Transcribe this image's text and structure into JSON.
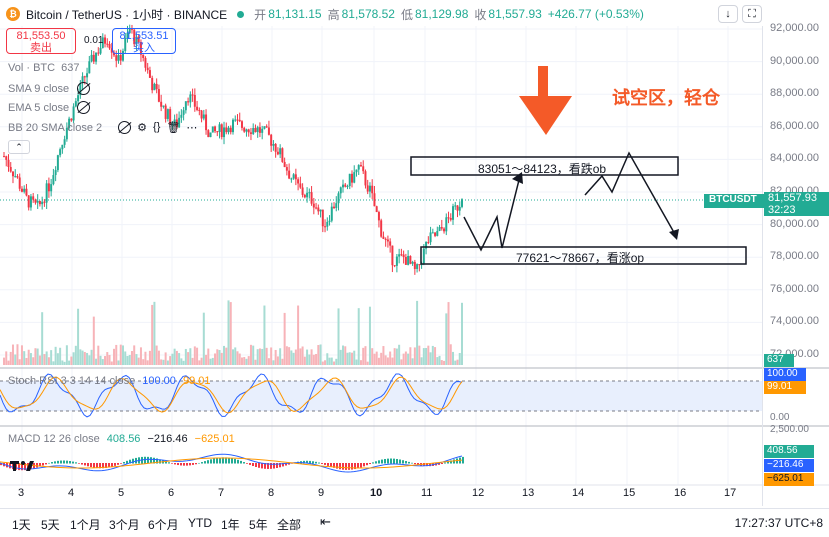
{
  "header": {
    "title": "Bitcoin / TetherUS · 1小时 · BINANCE",
    "open_label": "开",
    "open_value": "81,131.15",
    "high_label": "高",
    "high_value": "81,578.52",
    "low_label": "低",
    "low_value": "81,129.98",
    "close_label": "收",
    "close_value": "81,557.93",
    "change": "+426.77 (+0.53%)"
  },
  "trade": {
    "sell_price": "81,553.50",
    "sell_label": "卖出",
    "spread": "0.01",
    "buy_price": "81,553.51",
    "buy_label": "买入"
  },
  "indicators": {
    "vol_label": "Vol · BTC",
    "vol_value": "637",
    "sma_label": "SMA 9 close",
    "ema_label": "EMA 5 close",
    "bb_label": "BB 20 SMA close 2"
  },
  "price_axis": [
    "92,000.00",
    "90,000.00",
    "88,000.00",
    "86,000.00",
    "84,000.00",
    "82,000.00",
    "80,000.00",
    "78,000.00",
    "76,000.00",
    "74,000.00",
    "72,000.00"
  ],
  "price_tag": {
    "symbol": "BTCUSDT",
    "price": "81,557.93",
    "countdown": "32:23",
    "volume": "637"
  },
  "stoch": {
    "label": "Stoch RSI 3 3 14 14 close",
    "k": "100.00",
    "d": "99.01",
    "axis": [
      "100.00",
      "99.01",
      "0.00"
    ]
  },
  "macd": {
    "label": "MACD 12 26 close",
    "hist": "408.56",
    "macd": "−216.46",
    "signal": "−625.01",
    "axis": [
      "2,500.00",
      "408.56",
      "−216.46",
      "−625.01"
    ]
  },
  "x_axis": [
    "3",
    "4",
    "5",
    "6",
    "7",
    "8",
    "9",
    "10",
    "11",
    "12",
    "13",
    "14",
    "15",
    "16",
    "17"
  ],
  "annotations": {
    "upper_zone": "83051～84123，看跌ob",
    "lower_zone": "77621～78667，看涨op",
    "note": "试空区，轻仓"
  },
  "ranges": [
    "1天",
    "5天",
    "1个月",
    "3个月",
    "6个月",
    "YTD",
    "1年",
    "5年",
    "全部"
  ],
  "clock": "17:27:37 UTC+8",
  "colors": {
    "up": "#22ab94",
    "down": "#f23645",
    "accent": "#2962ff",
    "arrow": "#f45a28"
  },
  "chart_data": {
    "type": "candlestick",
    "symbol": "BTCUSDT",
    "interval": "1h",
    "last_close": 81557.93,
    "ylim": [
      72000,
      92500
    ],
    "path_closes": [
      84200,
      83000,
      81500,
      81000,
      82500,
      85000,
      87000,
      89000,
      90500,
      91500,
      90000,
      92000,
      90500,
      88500,
      87000,
      86000,
      88000,
      87000,
      85500,
      85800,
      86200,
      86000,
      85900,
      85500,
      84500,
      83000,
      82000,
      81500,
      80000,
      81500,
      82500,
      83500,
      82000,
      79500,
      77800,
      78000,
      77000,
      79000,
      79500,
      80500,
      81557.93
    ],
    "zones": [
      {
        "low": 83051,
        "high": 84123,
        "label": "83051～84123，看跌ob"
      },
      {
        "low": 77621,
        "high": 78667,
        "label": "77621～78667，看涨op"
      }
    ]
  }
}
